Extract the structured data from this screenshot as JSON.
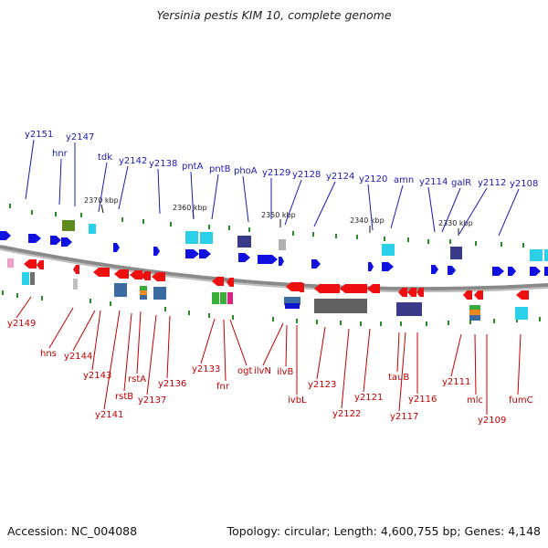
{
  "title": "Yersinia pestis KIM 10, complete genome",
  "footer": {
    "accession": "Accession: NC_004088",
    "summary": "Topology: circular; Length: 4,600,755 bp; Genes: 4,148"
  },
  "colors": {
    "forward_strand": "#1010e0",
    "reverse_strand": "#ee1010",
    "label_forward": "#1a1ab0",
    "label_reverse": "#c00000",
    "backbone": "#8a8a8a",
    "tick": "#2a8a2a"
  },
  "scale_ticks": [
    "2370 kbp",
    "2360 kbp",
    "2350 kbp",
    "2340 kbp",
    "2330 kbp"
  ],
  "top_gene_labels": [
    "y2151",
    "hnr",
    "y2147",
    "tdk",
    "y2142",
    "y2138",
    "pntA",
    "pntB",
    "phoA",
    "y2129",
    "y2128",
    "y2124",
    "y2120",
    "amn",
    "y2114",
    "galR",
    "y2112",
    "y2108"
  ],
  "bottom_gene_labels": [
    "y2149",
    "hns",
    "y2144",
    "y2143",
    "y2141",
    "rstB",
    "rstA",
    "y2137",
    "y2136",
    "y2133",
    "fnr",
    "ogt",
    "ilvN",
    "ilvB",
    "ivbL",
    "y2123",
    "y2122",
    "y2121",
    "tauB",
    "y2117",
    "y2116",
    "y2111",
    "mlc",
    "y2109",
    "fumC"
  ]
}
